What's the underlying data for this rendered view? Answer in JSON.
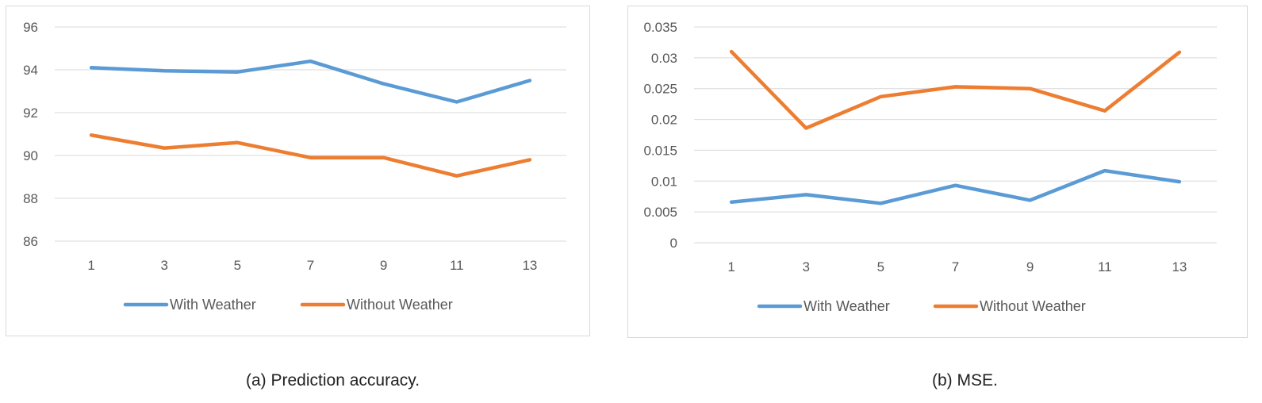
{
  "chart_data": [
    {
      "type": "line",
      "x": [
        1,
        3,
        5,
        7,
        9,
        11,
        13
      ],
      "series": [
        {
          "name": "With Weather",
          "color": "#5b9bd5",
          "values": [
            94.1,
            93.95,
            93.9,
            94.4,
            93.35,
            92.5,
            93.5
          ]
        },
        {
          "name": "Without Weather",
          "color": "#ed7d31",
          "values": [
            90.95,
            90.35,
            90.6,
            89.9,
            89.9,
            89.05,
            89.8
          ]
        }
      ],
      "ylim": [
        86,
        96
      ],
      "yticks": [
        "86",
        "88",
        "90",
        "92",
        "94",
        "96"
      ],
      "xticks": [
        "1",
        "3",
        "5",
        "7",
        "9",
        "11",
        "13"
      ],
      "grid": true,
      "legend": "bottom",
      "caption": "(a) Prediction accuracy."
    },
    {
      "type": "line",
      "x": [
        1,
        3,
        5,
        7,
        9,
        11,
        13
      ],
      "series": [
        {
          "name": "With Weather",
          "color": "#5b9bd5",
          "values": [
            0.0066,
            0.0078,
            0.0064,
            0.0093,
            0.0069,
            0.0117,
            0.0099
          ]
        },
        {
          "name": "Without Weather",
          "color": "#ed7d31",
          "values": [
            0.031,
            0.0186,
            0.0237,
            0.0253,
            0.025,
            0.0214,
            0.0309
          ]
        }
      ],
      "ylim": [
        0,
        0.035
      ],
      "yticks": [
        "0",
        "0.005",
        "0.01",
        "0.015",
        "0.02",
        "0.025",
        "0.03",
        "0.035"
      ],
      "xticks": [
        "1",
        "3",
        "5",
        "7",
        "9",
        "11",
        "13"
      ],
      "grid": true,
      "legend": "bottom",
      "caption": "(b) MSE."
    }
  ]
}
